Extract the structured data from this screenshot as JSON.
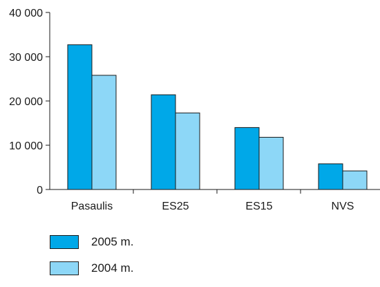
{
  "chart_data": {
    "type": "bar",
    "categories": [
      "Pasaulis",
      "ES25",
      "ES15",
      "NVS"
    ],
    "series": [
      {
        "name": "2005 m.",
        "values": [
          32700,
          21400,
          14000,
          5800
        ],
        "color": "#00a8e8"
      },
      {
        "name": "2004 m.",
        "values": [
          25800,
          17300,
          11800,
          4200
        ],
        "color": "#8dd7f7"
      }
    ],
    "ylim": [
      0,
      40000
    ],
    "yticks": [
      0,
      10000,
      20000,
      30000,
      40000
    ],
    "ytick_labels": [
      "0",
      "10 000",
      "20 000",
      "30 000",
      "40 000"
    ],
    "grid": false,
    "legend": "bottom-left",
    "title": "",
    "xlabel": "",
    "ylabel": ""
  }
}
